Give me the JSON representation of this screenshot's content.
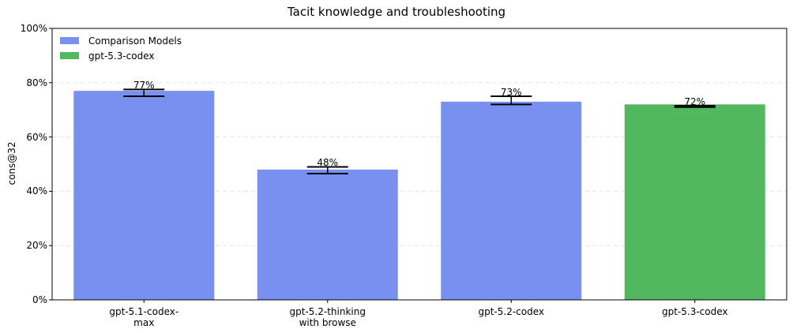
{
  "chart_data": {
    "type": "bar",
    "title": "Tacit knowledge and troubleshooting",
    "ylabel": "cons@32",
    "xlabel": "",
    "ylim": [
      0,
      100
    ],
    "yticks": [
      "0%",
      "20%",
      "40%",
      "60%",
      "80%",
      "100%"
    ],
    "ytick_values": [
      0,
      20,
      40,
      60,
      80,
      100
    ],
    "grid": "horizontal dashed",
    "legend_position": "top-left",
    "legend": [
      {
        "label": "Comparison Models",
        "color": "#7890f0"
      },
      {
        "label": "gpt-5.3-codex",
        "color": "#52b860"
      }
    ],
    "categories": [
      "gpt-5.1-codex-\nmax",
      "gpt-5.2-thinking\nwith browse",
      "gpt-5.2-codex",
      "gpt-5.3-codex"
    ],
    "values": [
      77,
      48,
      73,
      72
    ],
    "data_labels": [
      "77%",
      "48%",
      "73%",
      "72%"
    ],
    "error_low": [
      75,
      46.5,
      72,
      71
    ],
    "error_high": [
      77.5,
      49,
      75,
      71.5
    ],
    "bar_colors": [
      "#7890f0",
      "#7890f0",
      "#7890f0",
      "#52b860"
    ]
  }
}
